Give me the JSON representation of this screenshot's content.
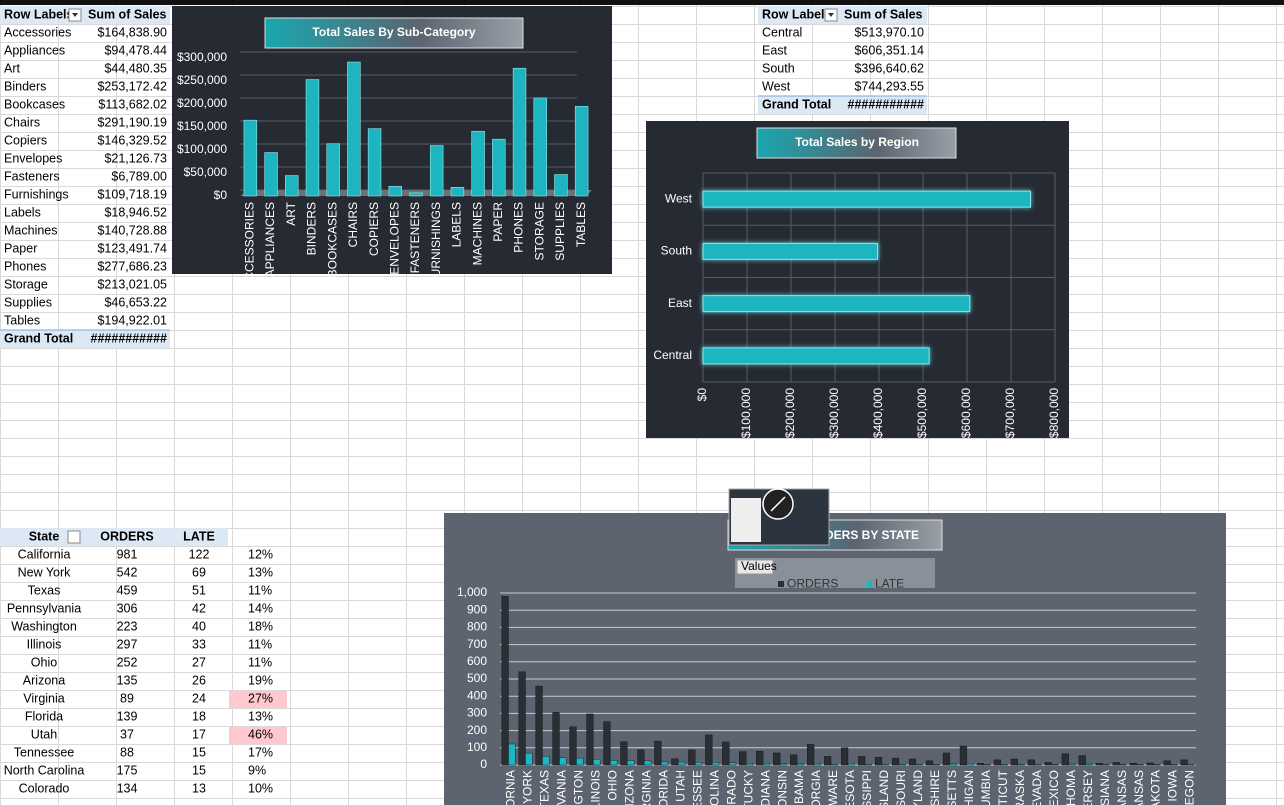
{
  "sales_pivot": {
    "headers": [
      "Row Labels",
      "Sum of Sales"
    ],
    "rows": [
      [
        "Accessories",
        "$164,838.90"
      ],
      [
        "Appliances",
        "$94,478.44"
      ],
      [
        "Art",
        "$44,480.35"
      ],
      [
        "Binders",
        "$253,172.42"
      ],
      [
        "Bookcases",
        "$113,682.02"
      ],
      [
        "Chairs",
        "$291,190.19"
      ],
      [
        "Copiers",
        "$146,329.52"
      ],
      [
        "Envelopes",
        "$21,126.73"
      ],
      [
        "Fasteners",
        "$6,789.00"
      ],
      [
        "Furnishings",
        "$109,718.19"
      ],
      [
        "Labels",
        "$18,946.52"
      ],
      [
        "Machines",
        "$140,728.88"
      ],
      [
        "Paper",
        "$123,491.74"
      ],
      [
        "Phones",
        "$277,686.23"
      ],
      [
        "Storage",
        "$213,021.05"
      ],
      [
        "Supplies",
        "$46,653.22"
      ],
      [
        "Tables",
        "$194,922.01"
      ]
    ],
    "total": [
      "Grand Total",
      "###########"
    ]
  },
  "region_pivot": {
    "headers": [
      "Row Labels",
      "Sum of Sales"
    ],
    "rows": [
      [
        "Central",
        "$513,970.10"
      ],
      [
        "East",
        "$606,351.14"
      ],
      [
        "South",
        "$396,640.62"
      ],
      [
        "West",
        "$744,293.55"
      ]
    ],
    "total": [
      "Grand Total",
      "###########"
    ]
  },
  "state_table": {
    "headers": [
      "State",
      "ORDERS",
      "LATE"
    ],
    "rows": [
      [
        "California",
        981,
        122,
        "12%"
      ],
      [
        "New York",
        542,
        69,
        "13%"
      ],
      [
        "Texas",
        459,
        51,
        "11%"
      ],
      [
        "Pennsylvania",
        306,
        42,
        "14%"
      ],
      [
        "Washington",
        223,
        40,
        "18%"
      ],
      [
        "Illinois",
        297,
        33,
        "11%"
      ],
      [
        "Ohio",
        252,
        27,
        "11%"
      ],
      [
        "Arizona",
        135,
        26,
        "19%"
      ],
      [
        "Virginia",
        89,
        24,
        "27%"
      ],
      [
        "Florida",
        139,
        18,
        "13%"
      ],
      [
        "Utah",
        37,
        17,
        "46%"
      ],
      [
        "Tennessee",
        88,
        15,
        "17%"
      ],
      [
        "North Carolina",
        175,
        15,
        "9%"
      ],
      [
        "Colorado",
        134,
        13,
        "10%"
      ]
    ],
    "highlighted_rows": [
      8,
      10
    ],
    "highlight_color": "#ffc7ce"
  },
  "chart_data": [
    {
      "type": "bar",
      "title": "Total Sales By Sub-Category",
      "categories": [
        "ACCESSORIES",
        "APPLIANCES",
        "ART",
        "BINDERS",
        "BOOKCASES",
        "CHAIRS",
        "COPIERS",
        "ENVELOPES",
        "FASTENERS",
        "FURNISHINGS",
        "LABELS",
        "MACHINES",
        "PAPER",
        "PHONES",
        "STORAGE",
        "SUPPLIES",
        "TABLES"
      ],
      "values": [
        164838.9,
        94478.44,
        44480.35,
        253172.42,
        113682.02,
        291190.19,
        146329.52,
        21126.73,
        6789.0,
        109718.19,
        18946.52,
        140728.88,
        123491.74,
        277686.23,
        213021.05,
        46653.22,
        194922.01
      ],
      "color": "#1fb5c0",
      "ylim": [
        0,
        300000
      ],
      "yticks": [
        {
          "value": 0,
          "label": "$0"
        },
        {
          "value": 50000,
          "label": "$50,000"
        },
        {
          "value": 100000,
          "label": "$100,000"
        },
        {
          "value": 150000,
          "label": "$150,000"
        },
        {
          "value": 200000,
          "label": "$200,000"
        },
        {
          "value": 250000,
          "label": "$250,000"
        },
        {
          "value": 300000,
          "label": "$300,000"
        }
      ],
      "grid": true
    },
    {
      "type": "barh",
      "title": "Total Sales by Region",
      "categories": [
        "Central",
        "East",
        "South",
        "West"
      ],
      "values": [
        513970.1,
        606351.14,
        396640.62,
        744293.55
      ],
      "color": "#1fb5c0",
      "xlim": [
        0,
        800000
      ],
      "xticks": [
        {
          "value": 0,
          "label": "$0"
        },
        {
          "value": 100000,
          "label": "$100,000"
        },
        {
          "value": 200000,
          "label": "$200,000"
        },
        {
          "value": 300000,
          "label": "$300,000"
        },
        {
          "value": 400000,
          "label": "$400,000"
        },
        {
          "value": 500000,
          "label": "$500,000"
        },
        {
          "value": 600000,
          "label": "$600,000"
        },
        {
          "value": 700000,
          "label": "$700,000"
        },
        {
          "value": 800000,
          "label": "$800,000"
        }
      ],
      "grid": true
    },
    {
      "type": "grouped_bar",
      "title": "DERS BY STATE",
      "legend_title": "Values",
      "categories": [
        "FORNIA",
        "W YORK",
        "TEXAS",
        "LVANIA",
        "NGTON",
        "LLINOIS",
        "OHIO",
        "RIZONA",
        "RGINIA",
        "LORIDA",
        "UTAH",
        "NESSEE",
        "ROLINA",
        "ORADO",
        "NTUCKY",
        "DIANA",
        "CONSIN",
        "BAMA",
        "ORGIA",
        "AWARE",
        "NESOTA",
        "SISSIPPI",
        "ISLAND",
        "SSOURI",
        "RYLAND",
        "PSHIRE",
        "USETTS",
        "CHIGAN",
        "UMBIA",
        "CTICUT",
        "BRASKA",
        "EVADA",
        "MEXICO",
        "AHOMA",
        "JERSEY",
        "ISIANA",
        "KANSAS",
        "KANSAS",
        "DAKOTA",
        "IOWA",
        "REGON"
      ],
      "series": [
        {
          "name": "ORDERS",
          "color": "#2a2e35",
          "values": [
            981,
            542,
            459,
            306,
            223,
            297,
            252,
            135,
            89,
            139,
            37,
            88,
            175,
            134,
            78,
            80,
            70,
            60,
            120,
            50,
            100,
            50,
            45,
            40,
            35,
            25,
            70,
            110,
            10,
            30,
            35,
            30,
            15,
            65,
            55,
            10,
            15,
            10,
            12,
            25,
            30
          ]
        },
        {
          "name": "LATE",
          "color": "#1fb5c0",
          "values": [
            122,
            69,
            51,
            42,
            40,
            33,
            27,
            26,
            24,
            18,
            17,
            15,
            15,
            13,
            10,
            10,
            8,
            8,
            10,
            5,
            10,
            5,
            5,
            5,
            4,
            3,
            8,
            10,
            2,
            4,
            4,
            4,
            2,
            6,
            6,
            2,
            2,
            2,
            2,
            3,
            4
          ]
        }
      ],
      "ylim": [
        0,
        1000
      ],
      "yticks": [
        0,
        100,
        200,
        300,
        400,
        500,
        600,
        700,
        800,
        900,
        {
          "value": 1000,
          "label": "1,000"
        }
      ],
      "grid": true
    }
  ]
}
